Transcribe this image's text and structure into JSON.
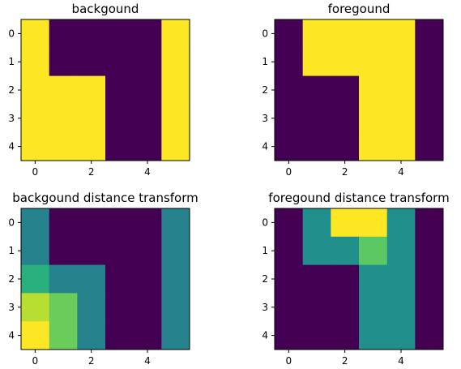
{
  "chart_data": [
    {
      "type": "heatmap",
      "title": "backgound",
      "matrix": [
        [
          1,
          0,
          0,
          0,
          0,
          1
        ],
        [
          1,
          0,
          0,
          0,
          0,
          1
        ],
        [
          1,
          1,
          1,
          0,
          0,
          1
        ],
        [
          1,
          1,
          1,
          0,
          0,
          1
        ],
        [
          1,
          1,
          1,
          0,
          0,
          1
        ]
      ],
      "vmin": 0,
      "vmax": 1,
      "xticks": [
        0,
        2,
        4
      ],
      "yticks": [
        0,
        1,
        2,
        3,
        4
      ],
      "colormap": "viridis"
    },
    {
      "type": "heatmap",
      "title": "foregound",
      "matrix": [
        [
          0,
          1,
          1,
          1,
          1,
          0
        ],
        [
          0,
          1,
          1,
          1,
          1,
          0
        ],
        [
          0,
          0,
          0,
          1,
          1,
          0
        ],
        [
          0,
          0,
          0,
          1,
          1,
          0
        ],
        [
          0,
          0,
          0,
          1,
          1,
          0
        ]
      ],
      "vmin": 0,
      "vmax": 1,
      "xticks": [
        0,
        2,
        4
      ],
      "yticks": [
        0,
        1,
        2,
        3,
        4
      ],
      "colormap": "viridis"
    },
    {
      "type": "heatmap",
      "title": "backgound distance transform",
      "matrix": [
        [
          1,
          0,
          0,
          0,
          0,
          1
        ],
        [
          1,
          0,
          0,
          0,
          0,
          1
        ],
        [
          1.414,
          1,
          1,
          0,
          0,
          1
        ],
        [
          2,
          1.732,
          1,
          0,
          0,
          1
        ],
        [
          2.236,
          1.732,
          1,
          0,
          0,
          1
        ]
      ],
      "vmin": 0,
      "vmax": 2.236,
      "xticks": [
        0,
        2,
        4
      ],
      "yticks": [
        0,
        1,
        2,
        3,
        4
      ],
      "colormap": "viridis"
    },
    {
      "type": "heatmap",
      "title": "foregound distance transform",
      "matrix": [
        [
          0,
          1,
          2,
          2,
          1,
          0
        ],
        [
          0,
          1,
          1,
          1.5,
          1,
          0
        ],
        [
          0,
          0,
          0,
          1,
          1,
          0
        ],
        [
          0,
          0,
          0,
          1,
          1,
          0
        ],
        [
          0,
          0,
          0,
          1,
          1,
          0
        ]
      ],
      "vmin": 0,
      "vmax": 2,
      "xticks": [
        0,
        2,
        4
      ],
      "yticks": [
        0,
        1,
        2,
        3,
        4
      ],
      "colormap": "viridis"
    }
  ]
}
